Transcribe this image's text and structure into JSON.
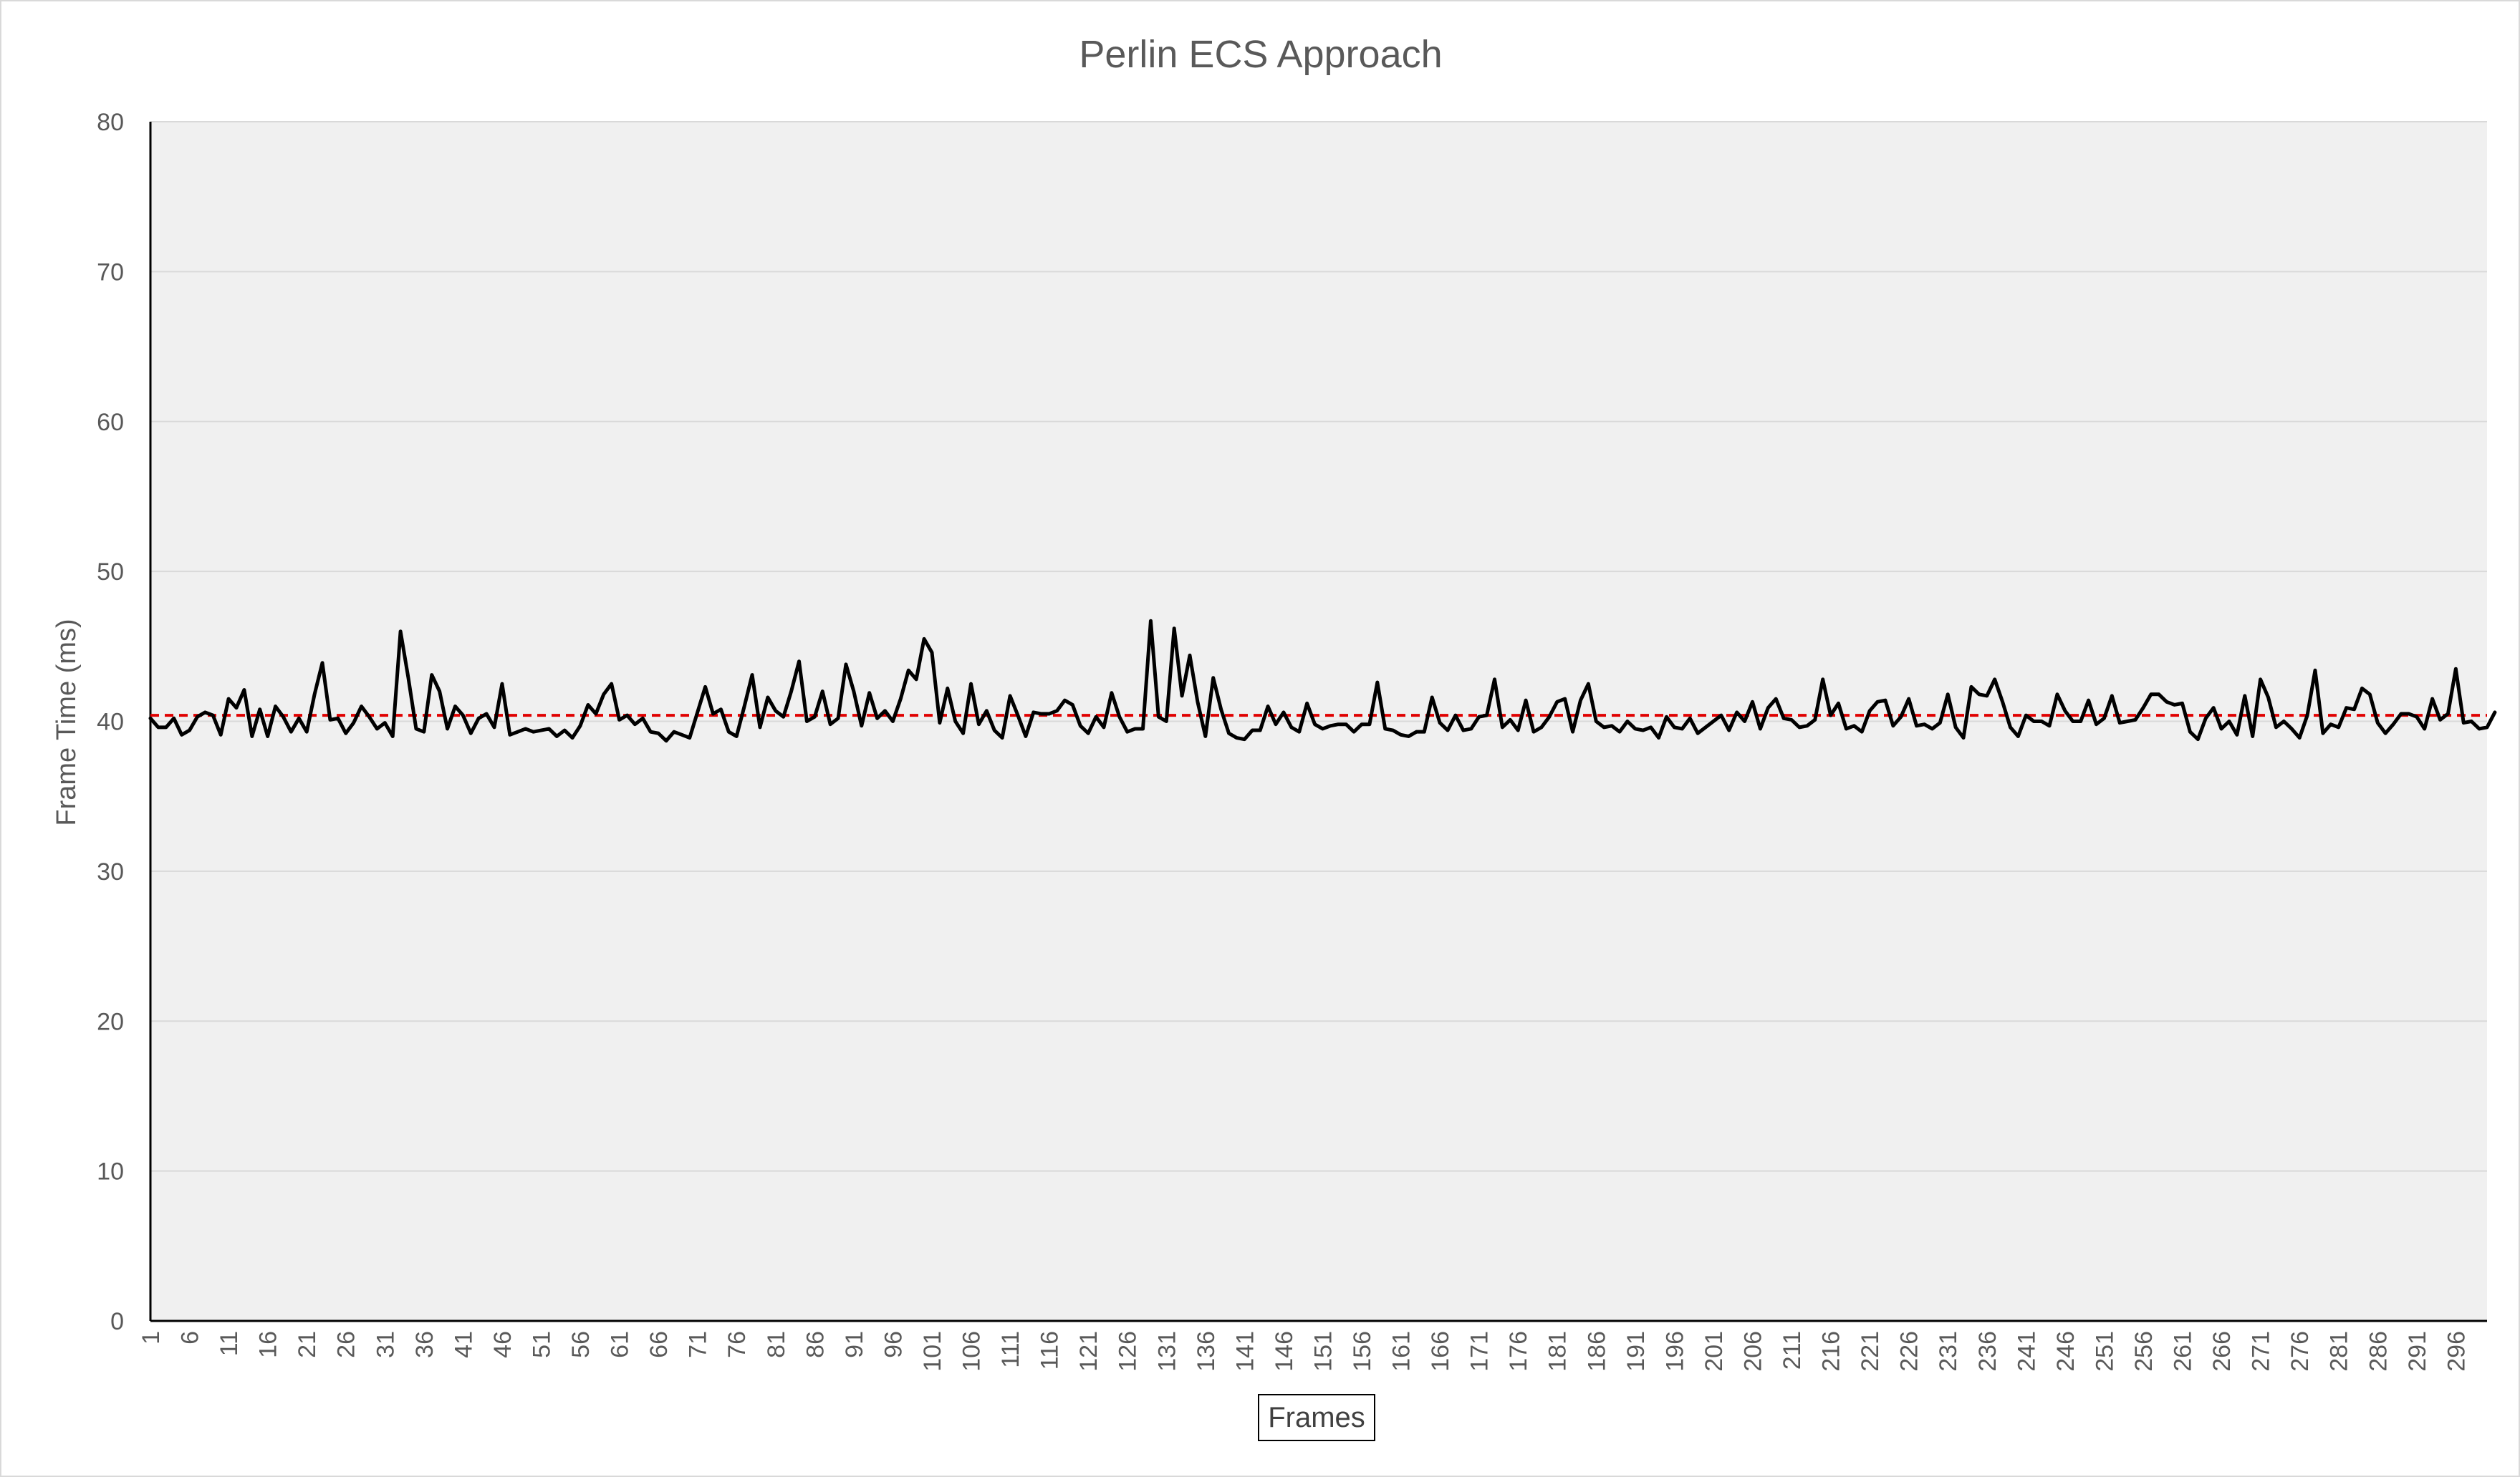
{
  "chart_data": {
    "type": "line",
    "title": "Perlin ECS Approach",
    "xlabel": "Frames",
    "ylabel": "Frame Time (ms)",
    "ylim": [
      0,
      80
    ],
    "yticks": [
      0,
      10,
      20,
      30,
      40,
      50,
      60,
      70,
      80
    ],
    "xlim": [
      1,
      300
    ],
    "xtick_step": 5,
    "grid": "horizontal",
    "legend": "none",
    "plot_background": "#f0f0f0",
    "average_line": {
      "value": 40.4,
      "color": "#e00000",
      "style": "dashed"
    },
    "series": [
      {
        "color": "#000000",
        "x_start": 1,
        "values": [
          40.2,
          39.6,
          39.6,
          40.2,
          39.1,
          39.4,
          40.3,
          40.6,
          40.4,
          39.1,
          41.5,
          40.9,
          42.1,
          39.0,
          40.8,
          39.0,
          41.0,
          40.3,
          39.3,
          40.2,
          39.3,
          41.8,
          43.9,
          40.1,
          40.2,
          39.2,
          39.9,
          41.0,
          40.3,
          39.5,
          39.9,
          39.0,
          46.0,
          42.9,
          39.5,
          39.3,
          43.1,
          42.0,
          39.5,
          41.0,
          40.4,
          39.2,
          40.2,
          40.5,
          39.6,
          42.5,
          39.1,
          39.3,
          39.5,
          39.3,
          39.4,
          39.5,
          39.0,
          39.4,
          38.9,
          39.7,
          41.1,
          40.5,
          41.8,
          42.5,
          40.1,
          40.4,
          39.8,
          40.2,
          39.3,
          39.2,
          38.7,
          39.3,
          39.1,
          38.9,
          40.6,
          42.3,
          40.5,
          40.8,
          39.3,
          39.0,
          41.0,
          43.1,
          39.6,
          41.6,
          40.7,
          40.3,
          42.0,
          44.0,
          40.0,
          40.3,
          42.0,
          39.8,
          40.2,
          43.8,
          42.0,
          39.7,
          41.9,
          40.2,
          40.7,
          40.0,
          41.5,
          43.4,
          42.8,
          45.5,
          44.6,
          39.9,
          42.2,
          40.0,
          39.2,
          42.5,
          39.8,
          40.7,
          39.4,
          38.9,
          41.7,
          40.4,
          39.0,
          40.6,
          40.5,
          40.5,
          40.7,
          41.4,
          41.1,
          39.7,
          39.2,
          40.3,
          39.6,
          41.9,
          40.3,
          39.3,
          39.5,
          39.5,
          46.7,
          40.3,
          40.0,
          46.2,
          41.7,
          44.4,
          41.3,
          39.0,
          42.9,
          40.8,
          39.2,
          38.9,
          38.8,
          39.4,
          39.4,
          41.0,
          39.8,
          40.6,
          39.6,
          39.3,
          41.2,
          39.8,
          39.5,
          39.7,
          39.8,
          39.8,
          39.3,
          39.8,
          39.8,
          42.6,
          39.5,
          39.4,
          39.1,
          39.0,
          39.3,
          39.3,
          41.6,
          39.9,
          39.4,
          40.4,
          39.4,
          39.5,
          40.3,
          40.4,
          42.8,
          39.6,
          40.1,
          39.4,
          41.4,
          39.3,
          39.6,
          40.3,
          41.3,
          41.5,
          39.3,
          41.4,
          42.5,
          40.0,
          39.6,
          39.7,
          39.3,
          40.0,
          39.5,
          39.4,
          39.6,
          38.9,
          40.3,
          39.6,
          39.5,
          40.2,
          39.2,
          39.6,
          40.0,
          40.4,
          39.4,
          40.6,
          40.0,
          41.3,
          39.5,
          40.9,
          41.5,
          40.2,
          40.1,
          39.6,
          39.7,
          40.1,
          42.8,
          40.4,
          41.2,
          39.5,
          39.7,
          39.3,
          40.7,
          41.3,
          41.4,
          39.7,
          40.3,
          41.5,
          39.7,
          39.8,
          39.5,
          39.9,
          41.8,
          39.6,
          38.9,
          42.3,
          41.8,
          41.7,
          42.8,
          41.3,
          39.6,
          39.0,
          40.4,
          40.0,
          40.0,
          39.7,
          41.8,
          40.7,
          40.0,
          40.0,
          41.4,
          39.8,
          40.2,
          41.7,
          39.9,
          40.0,
          40.1,
          40.9,
          41.8,
          41.8,
          41.3,
          41.1,
          41.2,
          39.3,
          38.8,
          40.2,
          40.9,
          39.5,
          40.0,
          39.1,
          41.7,
          39.0,
          42.8,
          41.6,
          39.6,
          40.0,
          39.5,
          38.9,
          40.4,
          43.4,
          39.2,
          39.8,
          39.6,
          40.9,
          40.8,
          42.2,
          41.8,
          39.9,
          39.2,
          39.8,
          40.5,
          40.5,
          40.3,
          39.5,
          41.5,
          40.1,
          40.5,
          43.5,
          39.9,
          40.0,
          39.5,
          39.6,
          40.6
        ]
      }
    ]
  }
}
